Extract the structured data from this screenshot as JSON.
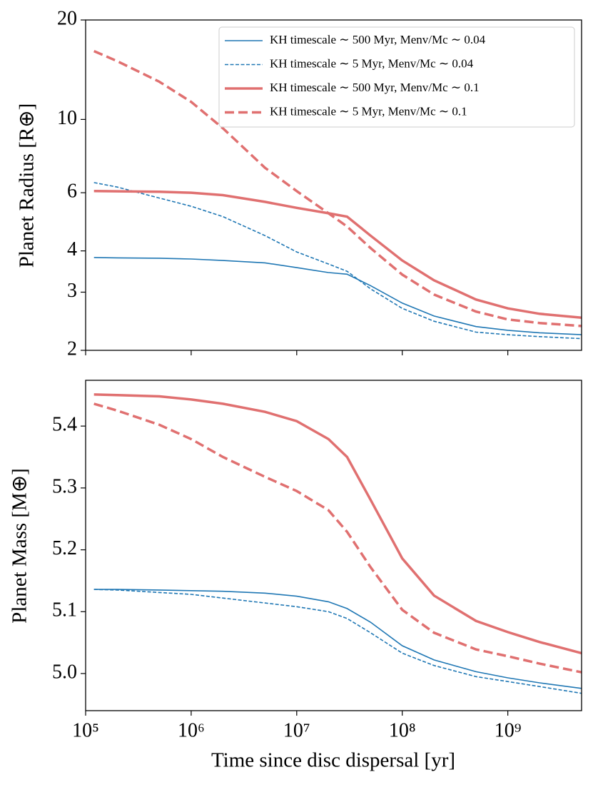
{
  "chart_data": [
    {
      "type": "line",
      "xscale": "log",
      "yscale": "log",
      "ylabel": "Planet Radius [R⊕]",
      "x": [
        120000,
        200000,
        500000,
        1000000,
        2000000,
        5000000,
        10000000,
        20000000,
        30000000,
        50000000,
        100000000,
        200000000,
        500000000,
        1000000000,
        2000000000,
        5000000000
      ],
      "xlim": [
        100000,
        5000000000
      ],
      "ylim": [
        2,
        20
      ],
      "yticks": [
        2,
        3,
        4,
        6,
        10,
        20
      ],
      "legend": "upper right",
      "series": [
        {
          "name": "KH timescale ∼ 500 Myr, Menv/Mc ∼ 0.04",
          "color": "#1f77b4",
          "linestyle": "solid",
          "linewidth": 1.6,
          "values": [
            3.82,
            3.81,
            3.8,
            3.78,
            3.74,
            3.68,
            3.56,
            3.44,
            3.4,
            3.14,
            2.78,
            2.54,
            2.36,
            2.3,
            2.26,
            2.23
          ]
        },
        {
          "name": "KH timescale ∼ 5 Myr, Menv/Mc ∼ 0.04",
          "color": "#1f77b4",
          "linestyle": "dashed",
          "linewidth": 1.6,
          "values": [
            6.44,
            6.24,
            5.78,
            5.46,
            5.08,
            4.45,
            3.97,
            3.65,
            3.47,
            3.07,
            2.68,
            2.45,
            2.27,
            2.23,
            2.2,
            2.17
          ]
        },
        {
          "name": "KH timescale ∼ 500 Myr, Menv/Mc ∼ 0.1",
          "color": "#e07070",
          "linestyle": "solid",
          "linewidth": 3.5,
          "values": [
            6.07,
            6.06,
            6.04,
            6.0,
            5.9,
            5.63,
            5.4,
            5.2,
            5.08,
            4.45,
            3.74,
            3.26,
            2.85,
            2.68,
            2.58,
            2.51
          ]
        },
        {
          "name": "KH timescale ∼ 5 Myr, Menv/Mc ∼ 0.1",
          "color": "#e07070",
          "linestyle": "dashed",
          "linewidth": 3.5,
          "values": [
            16.1,
            15.0,
            13.0,
            11.3,
            9.4,
            7.14,
            6.07,
            5.2,
            4.74,
            4.08,
            3.39,
            2.95,
            2.62,
            2.48,
            2.42,
            2.37
          ]
        }
      ]
    },
    {
      "type": "line",
      "xscale": "log",
      "yscale": "linear",
      "xlabel": "Time since disc dispersal [yr]",
      "ylabel": "Planet Mass [M⊕]",
      "x": [
        120000,
        200000,
        500000,
        1000000,
        2000000,
        5000000,
        10000000,
        20000000,
        30000000,
        50000000,
        100000000,
        200000000,
        500000000,
        1000000000,
        2000000000,
        5000000000
      ],
      "xlim": [
        100000,
        5000000000
      ],
      "xticks": [
        {
          "value": 100000,
          "label": "10⁵"
        },
        {
          "value": 1000000,
          "label": "10⁶"
        },
        {
          "value": 10000000,
          "label": "10⁷"
        },
        {
          "value": 100000000,
          "label": "10⁸"
        },
        {
          "value": 1000000000,
          "label": "10⁹"
        }
      ],
      "ylim": [
        4.94,
        5.474
      ],
      "yticks": [
        {
          "value": 5.0,
          "label": "5.0"
        },
        5.1,
        5.2,
        5.3,
        5.4
      ],
      "series": [
        {
          "color": "#1f77b4",
          "linestyle": "solid",
          "linewidth": 1.6,
          "values": [
            5.136,
            5.136,
            5.135,
            5.134,
            5.133,
            5.13,
            5.125,
            5.116,
            5.105,
            5.083,
            5.045,
            5.022,
            5.003,
            4.993,
            4.985,
            4.976
          ]
        },
        {
          "color": "#1f77b4",
          "linestyle": "dashed",
          "linewidth": 1.6,
          "values": [
            5.136,
            5.135,
            5.131,
            5.128,
            5.122,
            5.114,
            5.108,
            5.1,
            5.089,
            5.066,
            5.033,
            5.013,
            4.995,
            4.987,
            4.979,
            4.968
          ]
        },
        {
          "color": "#e07070",
          "linestyle": "solid",
          "linewidth": 3.5,
          "values": [
            5.451,
            5.45,
            5.448,
            5.443,
            5.436,
            5.423,
            5.408,
            5.379,
            5.35,
            5.281,
            5.186,
            5.126,
            5.085,
            5.067,
            5.051,
            5.033
          ]
        },
        {
          "color": "#e07070",
          "linestyle": "dashed",
          "linewidth": 3.5,
          "values": [
            5.436,
            5.425,
            5.402,
            5.379,
            5.35,
            5.318,
            5.295,
            5.264,
            5.229,
            5.172,
            5.103,
            5.066,
            5.039,
            5.028,
            5.016,
            5.002
          ]
        }
      ]
    }
  ]
}
